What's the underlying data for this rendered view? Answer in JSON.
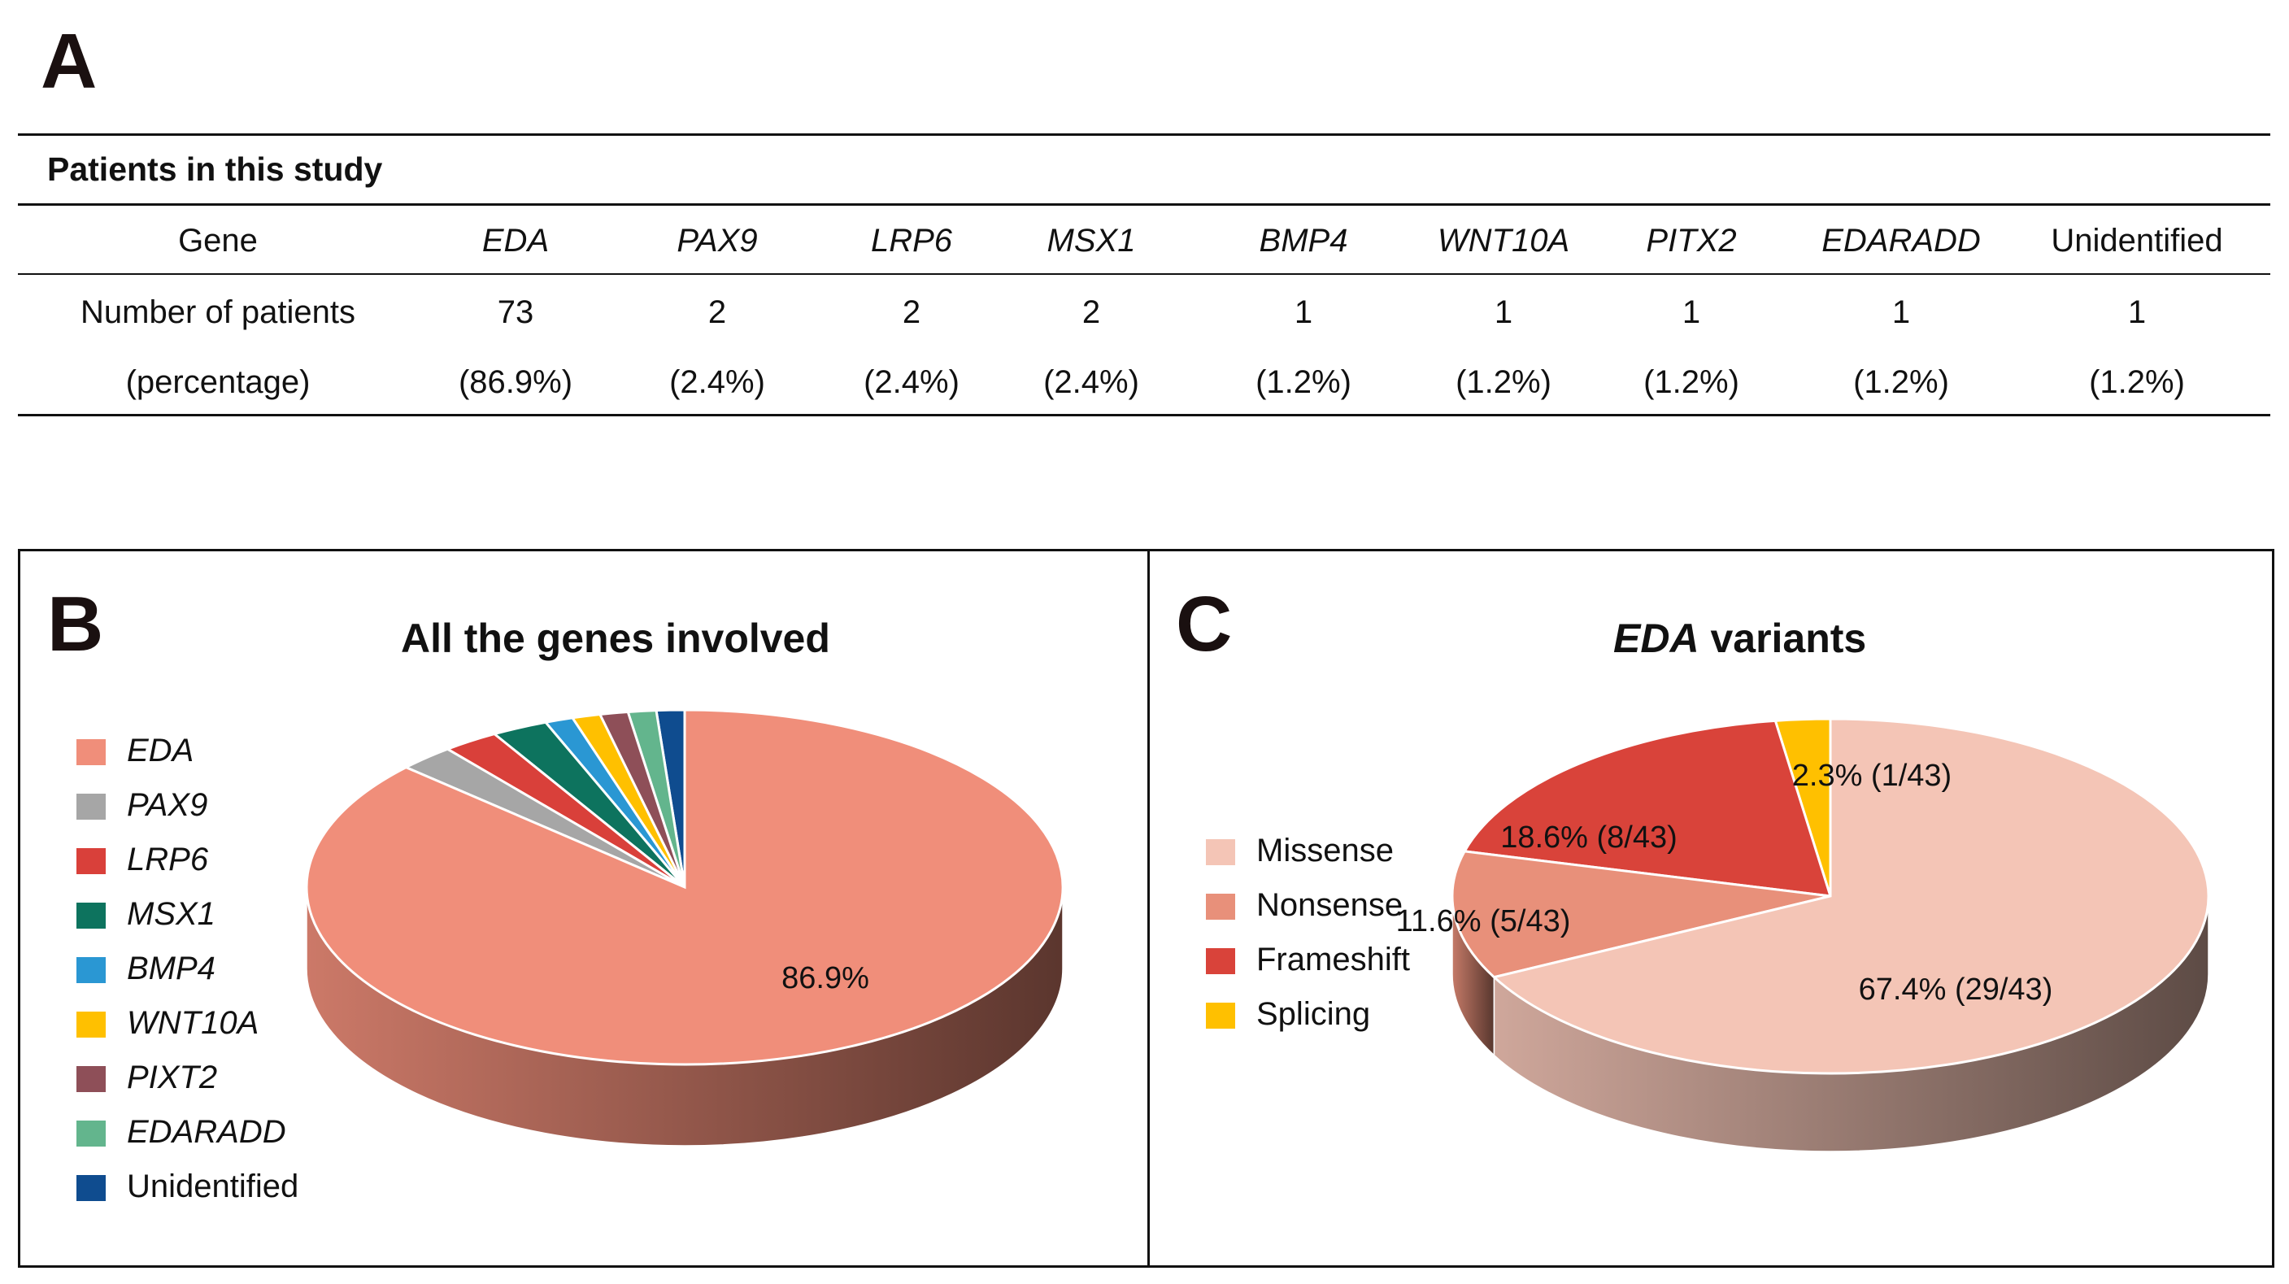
{
  "panel_letters": {
    "a": "A",
    "b": "B",
    "c": "C"
  },
  "table": {
    "title": "Patients in this study",
    "row_headers": [
      "Gene",
      "Number of patients",
      "(percentage)"
    ],
    "genes": [
      "EDA",
      "PAX9",
      "LRP6",
      "MSX1",
      "BMP4",
      "WNT10A",
      "PITX2",
      "EDARADD",
      "Unidentified"
    ],
    "counts": [
      "73",
      "2",
      "2",
      "2",
      "1",
      "1",
      "1",
      "1",
      "1"
    ],
    "percentages": [
      "(86.9%)",
      "(2.4%)",
      "(2.4%)",
      "(2.4%)",
      "(1.2%)",
      "(1.2%)",
      "(1.2%)",
      "(1.2%)",
      "(1.2%)"
    ]
  },
  "chart_data": [
    {
      "type": "pie",
      "title": "All the genes involved",
      "categories": [
        "EDA",
        "PAX9",
        "LRP6",
        "MSX1",
        "BMP4",
        "WNT10A",
        "PIXT2",
        "EDARADD",
        "Unidentified"
      ],
      "values": [
        86.9,
        2.4,
        2.4,
        2.4,
        1.2,
        1.2,
        1.2,
        1.2,
        1.2
      ],
      "colors": [
        "#f08e7a",
        "#a6a6a6",
        "#d9403a",
        "#0d735e",
        "#2a97d3",
        "#ffc000",
        "#8e4f58",
        "#63b58d",
        "#0f4c8f"
      ],
      "data_labels": [
        "86.9%",
        "",
        "",
        "",
        "",
        "",
        "",
        "",
        ""
      ],
      "legend_position": "left",
      "style": "3d",
      "italic_legend": true
    },
    {
      "type": "pie",
      "title_italic": "EDA",
      "title_rest": " variants",
      "categories": [
        "Missense",
        "Nonsense",
        "Frameshift",
        "Splicing"
      ],
      "values": [
        29,
        5,
        8,
        1
      ],
      "total": 43,
      "colors": [
        "#f4c5b6",
        "#e8907a",
        "#d9433a",
        "#ffc000"
      ],
      "data_labels": [
        "67.4% (29/43)",
        "11.6% (5/43)",
        "18.6% (8/43)",
        "2.3% (1/43)"
      ],
      "legend_position": "left",
      "style": "3d",
      "italic_legend": false
    }
  ]
}
